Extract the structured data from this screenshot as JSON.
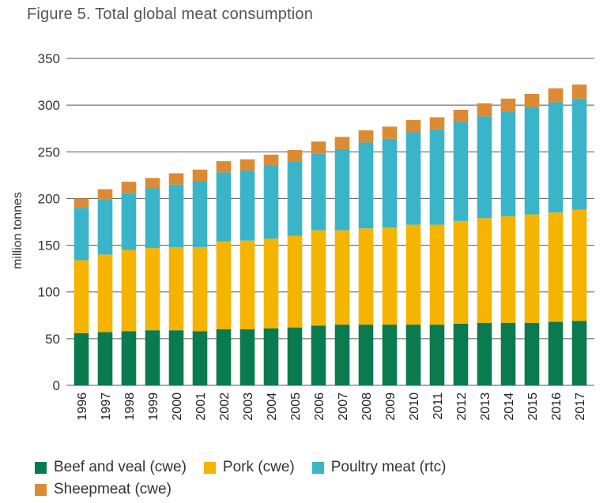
{
  "chart_data": {
    "type": "bar",
    "stacked": true,
    "title": "Figure 5. Total global meat consumption",
    "xlabel": "",
    "ylabel": "million tonnes",
    "ylim": [
      0,
      350
    ],
    "yticks": [
      0,
      50,
      100,
      150,
      200,
      250,
      300,
      350
    ],
    "grid": "horizontal",
    "legend_position": "bottom",
    "categories": [
      "1996",
      "1997",
      "1998",
      "1999",
      "2000",
      "2001",
      "2002",
      "2003",
      "2004",
      "2005",
      "2006",
      "2007",
      "2008",
      "2009",
      "2010",
      "2011",
      "2012",
      "2013",
      "2014",
      "2015",
      "2016",
      "2017"
    ],
    "series": [
      {
        "name": "Beef and veal (cwe)",
        "color": "#0a7a4f",
        "values": [
          56,
          57,
          58,
          59,
          59,
          58,
          60,
          60,
          61,
          62,
          64,
          65,
          65,
          65,
          65,
          65,
          66,
          67,
          67,
          67,
          68,
          69
        ]
      },
      {
        "name": "Pork (cwe)",
        "color": "#f5b400",
        "values": [
          78,
          83,
          87,
          88,
          89,
          90,
          94,
          95,
          96,
          98,
          102,
          101,
          103,
          104,
          107,
          107,
          110,
          112,
          114,
          116,
          117,
          119
        ]
      },
      {
        "name": "Poultry meat (rtc)",
        "color": "#3ab4c9",
        "values": [
          56,
          59,
          61,
          64,
          67,
          71,
          74,
          75,
          78,
          80,
          82,
          87,
          92,
          95,
          99,
          102,
          106,
          109,
          112,
          115,
          118,
          119
        ]
      },
      {
        "name": "Sheepmeat (cwe)",
        "color": "#dc8a34",
        "values": [
          10,
          11,
          12,
          11,
          12,
          12,
          12,
          12,
          12,
          12,
          13,
          13,
          13,
          13,
          13,
          13,
          13,
          14,
          14,
          14,
          15,
          15
        ]
      }
    ]
  }
}
